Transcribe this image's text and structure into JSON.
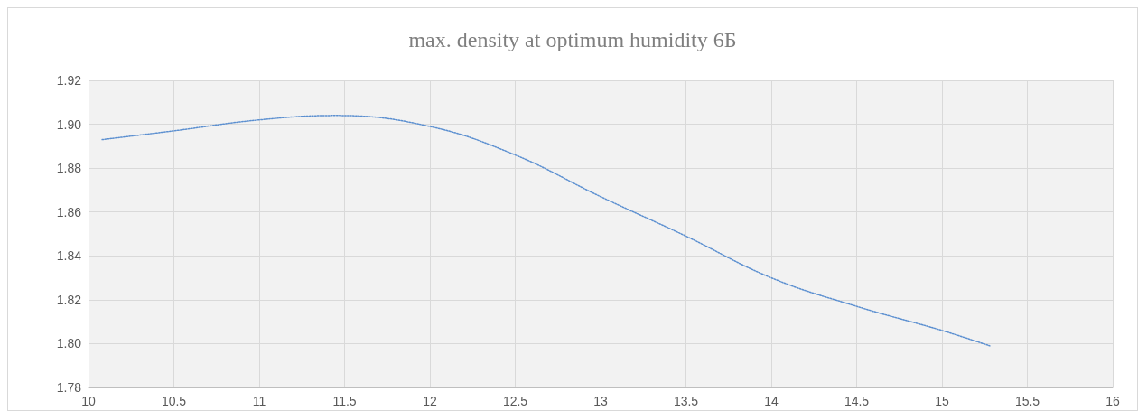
{
  "chart_data": {
    "type": "line",
    "title": "max. density at optimum humidity 6Б",
    "series": [
      {
        "color": "#5b8fd0",
        "x": [
          10.08,
          10.5,
          11.0,
          11.45,
          12.0,
          12.5,
          13.0,
          13.5,
          14.0,
          14.5,
          15.0,
          15.28
        ],
        "values": [
          1.893,
          1.897,
          1.902,
          1.904,
          1.899,
          1.886,
          1.867,
          1.849,
          1.83,
          1.817,
          1.806,
          1.799
        ]
      }
    ],
    "xlim": [
      10,
      16
    ],
    "xticks": [
      10,
      10.5,
      11,
      11.5,
      12,
      12.5,
      13,
      13.5,
      14,
      14.5,
      15,
      15.5,
      16
    ],
    "ylim": [
      1.78,
      1.92
    ],
    "yticks": [
      1.78,
      {
        "value": 1.8,
        "label": "1.80"
      },
      1.82,
      1.84,
      1.86,
      1.88,
      {
        "value": 1.9,
        "label": "1.90"
      },
      1.92
    ],
    "grid": true,
    "marker": "none",
    "line_style": "dotted"
  }
}
